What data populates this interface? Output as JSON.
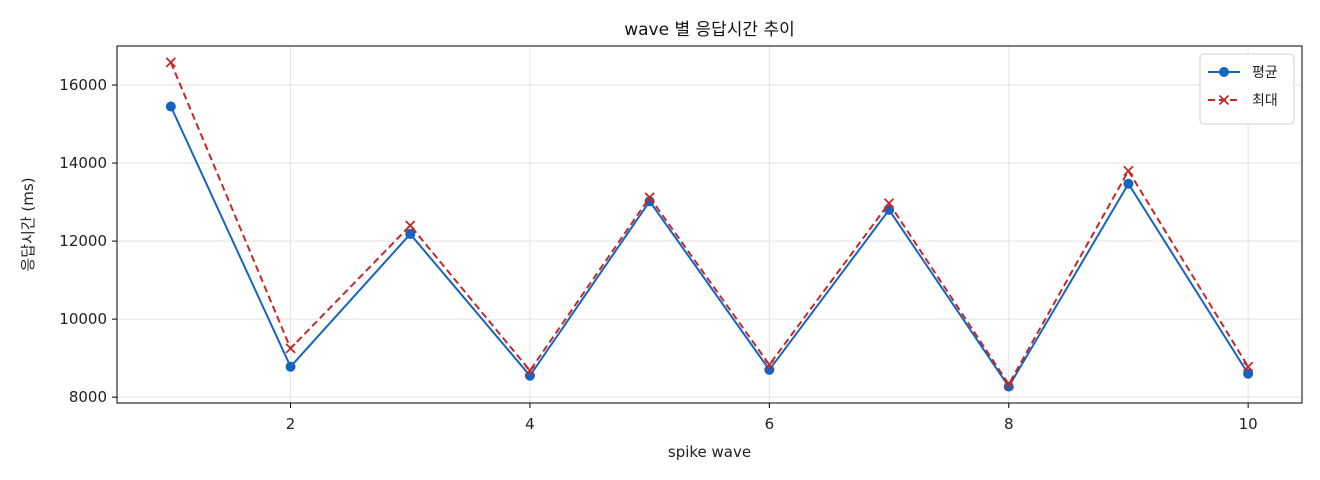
{
  "chart_data": {
    "type": "line",
    "title": "wave 별 응답시간 추이",
    "xlabel": "spike wave",
    "ylabel": "응답시간 (ms)",
    "x": [
      1,
      2,
      3,
      4,
      5,
      6,
      7,
      8,
      9,
      10
    ],
    "xlim": [
      0.55,
      10.45
    ],
    "ylim": [
      7850,
      17000
    ],
    "xticks": [
      2,
      4,
      6,
      8,
      10
    ],
    "yticks": [
      8000,
      10000,
      12000,
      14000,
      16000
    ],
    "grid": true,
    "legend_position": "top-right",
    "series": [
      {
        "name": "평균",
        "color": "#1565c0",
        "line_style": "solid",
        "marker": "circle",
        "values": [
          15450,
          8780,
          12180,
          8550,
          13020,
          8700,
          12800,
          8270,
          13470,
          8600
        ]
      },
      {
        "name": "최대",
        "color": "#c62828",
        "line_style": "dashed",
        "marker": "x",
        "values": [
          16580,
          9250,
          12400,
          8680,
          13120,
          8830,
          12970,
          8330,
          13800,
          8780
        ]
      }
    ]
  }
}
